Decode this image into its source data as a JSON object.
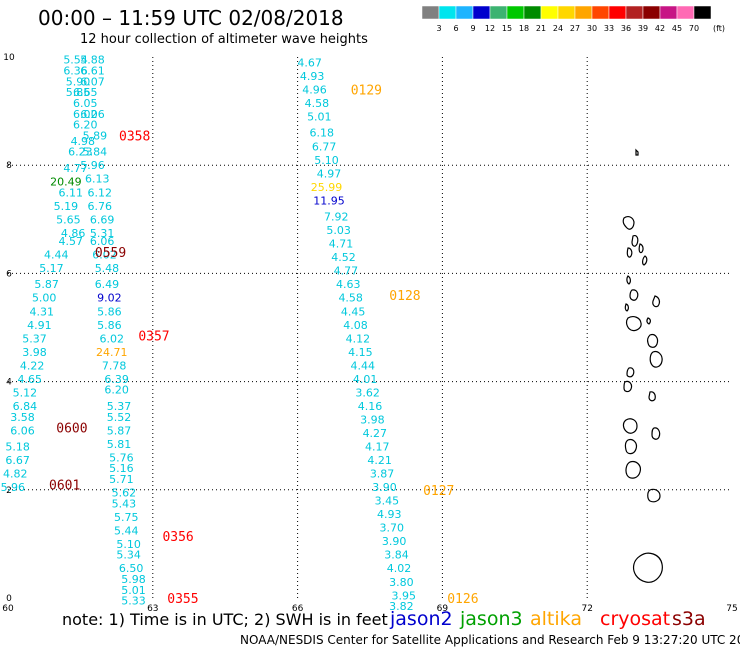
{
  "title": "00:00 – 11:59 UTC 02/08/2018",
  "subtitle": "12 hour collection of altimeter wave heights",
  "note": "note: 1) Time is in UTC; 2) SWH is in feet",
  "credit": "NOAA/NESDIS Center for Satellite Applications and Research   Feb  9 13:27:20 UTC 2018",
  "colorbar": {
    "unit_label": "(ft)",
    "ticks": [
      "3",
      "6",
      "9",
      "12",
      "15",
      "18",
      "21",
      "24",
      "27",
      "30",
      "33",
      "36",
      "39",
      "42",
      "45",
      "70"
    ],
    "colors": [
      "#808080",
      "#00e5ee",
      "#1eb4ff",
      "#0000cd",
      "#3cb371",
      "#00c800",
      "#008b00",
      "#ffff00",
      "#ffd700",
      "#ffa500",
      "#ff4500",
      "#ff0000",
      "#b22222",
      "#8b0000",
      "#c71585",
      "#ff69b4",
      "#000000"
    ]
  },
  "satellites": [
    {
      "name": "jason2",
      "color": "#0000cd"
    },
    {
      "name": "jason3",
      "color": "#00a000"
    },
    {
      "name": "altika",
      "color": "#ffa500"
    },
    {
      "name": "cryosat",
      "color": "#ff0000"
    },
    {
      "name": "s3a",
      "color": "#8b0000"
    }
  ],
  "map": {
    "lon_range": [
      60,
      75
    ],
    "lat_range": [
      0,
      10
    ],
    "x_ticks": [
      60,
      63,
      66,
      69,
      72,
      75
    ],
    "y_ticks": [
      0,
      2,
      4,
      6,
      8,
      10
    ],
    "grid": "dotted"
  },
  "passes": [
    {
      "label": "0129",
      "sat": "altika",
      "lon": 67.1,
      "lat": 9.4
    },
    {
      "label": "0128",
      "sat": "altika",
      "lon": 67.9,
      "lat": 5.6
    },
    {
      "label": "0127",
      "sat": "altika",
      "lon": 68.6,
      "lat": 2.0
    },
    {
      "label": "0126",
      "sat": "altika",
      "lon": 69.1,
      "lat": 0.0
    },
    {
      "label": "0358",
      "sat": "cryosat",
      "lon": 62.3,
      "lat": 8.55
    },
    {
      "label": "0357",
      "sat": "cryosat",
      "lon": 62.7,
      "lat": 4.85
    },
    {
      "label": "0356",
      "sat": "cryosat",
      "lon": 63.2,
      "lat": 1.15
    },
    {
      "label": "0355",
      "sat": "cryosat",
      "lon": 63.3,
      "lat": 0.0
    },
    {
      "label": "0559",
      "sat": "s3a",
      "lon": 61.8,
      "lat": 6.4
    },
    {
      "label": "0600",
      "sat": "s3a",
      "lon": 61.0,
      "lat": 3.15
    },
    {
      "label": "0601",
      "sat": "s3a",
      "lon": 60.85,
      "lat": 2.1
    }
  ],
  "observations": [
    {
      "v": "5.54",
      "lon": 61.4,
      "lat": 9.95,
      "c": "#00c8dc"
    },
    {
      "v": "5.88",
      "lon": 61.75,
      "lat": 9.95,
      "c": "#00c8dc"
    },
    {
      "v": "6.36",
      "lon": 61.4,
      "lat": 9.75,
      "c": "#00c8dc"
    },
    {
      "v": "6.61",
      "lon": 61.75,
      "lat": 9.75,
      "c": "#00c8dc"
    },
    {
      "v": "5.90",
      "lon": 61.45,
      "lat": 9.55,
      "c": "#00c8dc"
    },
    {
      "v": "6.07",
      "lon": 61.75,
      "lat": 9.55,
      "c": "#00c8dc"
    },
    {
      "v": "5.85",
      "lon": 61.45,
      "lat": 9.35,
      "c": "#00c8dc"
    },
    {
      "v": "6.65",
      "lon": 61.6,
      "lat": 9.35,
      "c": "#00c8dc"
    },
    {
      "v": "6.05",
      "lon": 61.6,
      "lat": 9.15,
      "c": "#00c8dc"
    },
    {
      "v": "6.02",
      "lon": 61.6,
      "lat": 8.95,
      "c": "#00c8dc"
    },
    {
      "v": "6.06",
      "lon": 61.75,
      "lat": 8.95,
      "c": "#00c8dc"
    },
    {
      "v": "6.20",
      "lon": 61.6,
      "lat": 8.75,
      "c": "#00c8dc"
    },
    {
      "v": "4.98",
      "lon": 61.55,
      "lat": 8.45,
      "c": "#00c8dc"
    },
    {
      "v": "5.89",
      "lon": 61.8,
      "lat": 8.55,
      "c": "#00c8dc"
    },
    {
      "v": "6.23",
      "lon": 61.5,
      "lat": 8.25,
      "c": "#00c8dc"
    },
    {
      "v": "5.84",
      "lon": 61.8,
      "lat": 8.25,
      "c": "#00c8dc"
    },
    {
      "v": "4.77",
      "lon": 61.4,
      "lat": 7.95,
      "c": "#00c8dc"
    },
    {
      "v": "5.96",
      "lon": 61.75,
      "lat": 8.0,
      "c": "#00c8dc"
    },
    {
      "v": "20.49",
      "lon": 61.2,
      "lat": 7.7,
      "c": "#008b00"
    },
    {
      "v": "6.13",
      "lon": 61.85,
      "lat": 7.75,
      "c": "#00c8dc"
    },
    {
      "v": "6.11",
      "lon": 61.3,
      "lat": 7.5,
      "c": "#00c8dc"
    },
    {
      "v": "6.12",
      "lon": 61.9,
      "lat": 7.5,
      "c": "#00c8dc"
    },
    {
      "v": "5.19",
      "lon": 61.2,
      "lat": 7.25,
      "c": "#00c8dc"
    },
    {
      "v": "6.76",
      "lon": 61.9,
      "lat": 7.25,
      "c": "#00c8dc"
    },
    {
      "v": "5.65",
      "lon": 61.25,
      "lat": 7.0,
      "c": "#00c8dc"
    },
    {
      "v": "6.69",
      "lon": 61.95,
      "lat": 7.0,
      "c": "#00c8dc"
    },
    {
      "v": "4.86",
      "lon": 61.35,
      "lat": 6.75,
      "c": "#00c8dc"
    },
    {
      "v": "5.31",
      "lon": 61.95,
      "lat": 6.75,
      "c": "#00c8dc"
    },
    {
      "v": "4.57",
      "lon": 61.3,
      "lat": 6.6,
      "c": "#00c8dc"
    },
    {
      "v": "6.06",
      "lon": 61.95,
      "lat": 6.6,
      "c": "#00c8dc"
    },
    {
      "v": "4.44",
      "lon": 61.0,
      "lat": 6.35,
      "c": "#00c8dc"
    },
    {
      "v": "6.02",
      "lon": 62.0,
      "lat": 6.35,
      "c": "#00c8dc"
    },
    {
      "v": "5.17",
      "lon": 60.9,
      "lat": 6.1,
      "c": "#00c8dc"
    },
    {
      "v": "5.48",
      "lon": 62.05,
      "lat": 6.1,
      "c": "#00c8dc"
    },
    {
      "v": "5.87",
      "lon": 60.8,
      "lat": 5.8,
      "c": "#00c8dc"
    },
    {
      "v": "6.49",
      "lon": 62.05,
      "lat": 5.8,
      "c": "#00c8dc"
    },
    {
      "v": "5.00",
      "lon": 60.75,
      "lat": 5.55,
      "c": "#00c8dc"
    },
    {
      "v": "9.02",
      "lon": 62.1,
      "lat": 5.55,
      "c": "#0000cd"
    },
    {
      "v": "4.31",
      "lon": 60.7,
      "lat": 5.3,
      "c": "#00c8dc"
    },
    {
      "v": "5.86",
      "lon": 62.1,
      "lat": 5.3,
      "c": "#00c8dc"
    },
    {
      "v": "4.91",
      "lon": 60.65,
      "lat": 5.05,
      "c": "#00c8dc"
    },
    {
      "v": "5.86",
      "lon": 62.1,
      "lat": 5.05,
      "c": "#00c8dc"
    },
    {
      "v": "5.37",
      "lon": 60.55,
      "lat": 4.8,
      "c": "#00c8dc"
    },
    {
      "v": "6.02",
      "lon": 62.15,
      "lat": 4.8,
      "c": "#00c8dc"
    },
    {
      "v": "3.98",
      "lon": 60.55,
      "lat": 4.55,
      "c": "#00c8dc"
    },
    {
      "v": "24.71",
      "lon": 62.15,
      "lat": 4.55,
      "c": "#ffa500"
    },
    {
      "v": "4.22",
      "lon": 60.5,
      "lat": 4.3,
      "c": "#00c8dc"
    },
    {
      "v": "7.78",
      "lon": 62.2,
      "lat": 4.3,
      "c": "#00c8dc"
    },
    {
      "v": "4.65",
      "lon": 60.45,
      "lat": 4.05,
      "c": "#00c8dc"
    },
    {
      "v": "6.39",
      "lon": 62.25,
      "lat": 4.05,
      "c": "#00c8dc"
    },
    {
      "v": "5.12",
      "lon": 60.35,
      "lat": 3.8,
      "c": "#00c8dc"
    },
    {
      "v": "6.20",
      "lon": 62.25,
      "lat": 3.85,
      "c": "#00c8dc"
    },
    {
      "v": "6.84",
      "lon": 60.35,
      "lat": 3.55,
      "c": "#00c8dc"
    },
    {
      "v": "5.37",
      "lon": 62.3,
      "lat": 3.55,
      "c": "#00c8dc"
    },
    {
      "v": "3.58",
      "lon": 60.3,
      "lat": 3.35,
      "c": "#00c8dc"
    },
    {
      "v": "5.52",
      "lon": 62.3,
      "lat": 3.35,
      "c": "#00c8dc"
    },
    {
      "v": "6.06",
      "lon": 60.3,
      "lat": 3.1,
      "c": "#00c8dc"
    },
    {
      "v": "5.87",
      "lon": 62.3,
      "lat": 3.1,
      "c": "#00c8dc"
    },
    {
      "v": "5.81",
      "lon": 62.3,
      "lat": 2.85,
      "c": "#00c8dc"
    },
    {
      "v": "5.18",
      "lon": 60.2,
      "lat": 2.8,
      "c": "#00c8dc"
    },
    {
      "v": "5.76",
      "lon": 62.35,
      "lat": 2.6,
      "c": "#00c8dc"
    },
    {
      "v": "6.67",
      "lon": 60.2,
      "lat": 2.55,
      "c": "#00c8dc"
    },
    {
      "v": "5.16",
      "lon": 62.35,
      "lat": 2.4,
      "c": "#00c8dc"
    },
    {
      "v": "4.82",
      "lon": 60.15,
      "lat": 2.3,
      "c": "#00c8dc"
    },
    {
      "v": "5.71",
      "lon": 62.35,
      "lat": 2.2,
      "c": "#00c8dc"
    },
    {
      "v": "5.96",
      "lon": 60.1,
      "lat": 2.05,
      "c": "#00c8dc"
    },
    {
      "v": "5.62",
      "lon": 62.4,
      "lat": 1.95,
      "c": "#00c8dc"
    },
    {
      "v": "5.43",
      "lon": 62.4,
      "lat": 1.75,
      "c": "#00c8dc"
    },
    {
      "v": "5.75",
      "lon": 62.45,
      "lat": 1.5,
      "c": "#00c8dc"
    },
    {
      "v": "5.44",
      "lon": 62.45,
      "lat": 1.25,
      "c": "#00c8dc"
    },
    {
      "v": "5.10",
      "lon": 62.5,
      "lat": 1.0,
      "c": "#00c8dc"
    },
    {
      "v": "5.34",
      "lon": 62.5,
      "lat": 0.8,
      "c": "#00c8dc"
    },
    {
      "v": "6.50",
      "lon": 62.55,
      "lat": 0.55,
      "c": "#00c8dc"
    },
    {
      "v": "5.98",
      "lon": 62.6,
      "lat": 0.35,
      "c": "#00c8dc"
    },
    {
      "v": "5.01",
      "lon": 62.6,
      "lat": 0.15,
      "c": "#00c8dc"
    },
    {
      "v": "5.33",
      "lon": 62.6,
      "lat": -0.05,
      "c": "#00c8dc"
    },
    {
      "v": "4.67",
      "lon": 66.25,
      "lat": 9.9,
      "c": "#00c8dc"
    },
    {
      "v": "4.93",
      "lon": 66.3,
      "lat": 9.65,
      "c": "#00c8dc"
    },
    {
      "v": "4.96",
      "lon": 66.35,
      "lat": 9.4,
      "c": "#00c8dc"
    },
    {
      "v": "4.58",
      "lon": 66.4,
      "lat": 9.15,
      "c": "#00c8dc"
    },
    {
      "v": "5.01",
      "lon": 66.45,
      "lat": 8.9,
      "c": "#00c8dc"
    },
    {
      "v": "6.18",
      "lon": 66.5,
      "lat": 8.6,
      "c": "#00c8dc"
    },
    {
      "v": "6.77",
      "lon": 66.55,
      "lat": 8.35,
      "c": "#00c8dc"
    },
    {
      "v": "5.10",
      "lon": 66.6,
      "lat": 8.1,
      "c": "#00c8dc"
    },
    {
      "v": "4.97",
      "lon": 66.65,
      "lat": 7.85,
      "c": "#00c8dc"
    },
    {
      "v": "25.99",
      "lon": 66.6,
      "lat": 7.6,
      "c": "#ffd700"
    },
    {
      "v": "11.95",
      "lon": 66.65,
      "lat": 7.35,
      "c": "#0000cd"
    },
    {
      "v": "7.92",
      "lon": 66.8,
      "lat": 7.05,
      "c": "#00c8dc"
    },
    {
      "v": "5.03",
      "lon": 66.85,
      "lat": 6.8,
      "c": "#00c8dc"
    },
    {
      "v": "4.71",
      "lon": 66.9,
      "lat": 6.55,
      "c": "#00c8dc"
    },
    {
      "v": "4.52",
      "lon": 66.95,
      "lat": 6.3,
      "c": "#00c8dc"
    },
    {
      "v": "4.77",
      "lon": 67.0,
      "lat": 6.05,
      "c": "#00c8dc"
    },
    {
      "v": "4.63",
      "lon": 67.05,
      "lat": 5.8,
      "c": "#00c8dc"
    },
    {
      "v": "4.58",
      "lon": 67.1,
      "lat": 5.55,
      "c": "#00c8dc"
    },
    {
      "v": "4.45",
      "lon": 67.15,
      "lat": 5.3,
      "c": "#00c8dc"
    },
    {
      "v": "4.08",
      "lon": 67.2,
      "lat": 5.05,
      "c": "#00c8dc"
    },
    {
      "v": "4.12",
      "lon": 67.25,
      "lat": 4.8,
      "c": "#00c8dc"
    },
    {
      "v": "4.15",
      "lon": 67.3,
      "lat": 4.55,
      "c": "#00c8dc"
    },
    {
      "v": "4.44",
      "lon": 67.35,
      "lat": 4.3,
      "c": "#00c8dc"
    },
    {
      "v": "4.01",
      "lon": 67.4,
      "lat": 4.05,
      "c": "#00c8dc"
    },
    {
      "v": "3.62",
      "lon": 67.45,
      "lat": 3.8,
      "c": "#00c8dc"
    },
    {
      "v": "4.16",
      "lon": 67.5,
      "lat": 3.55,
      "c": "#00c8dc"
    },
    {
      "v": "3.98",
      "lon": 67.55,
      "lat": 3.3,
      "c": "#00c8dc"
    },
    {
      "v": "4.27",
      "lon": 67.6,
      "lat": 3.05,
      "c": "#00c8dc"
    },
    {
      "v": "4.17",
      "lon": 67.65,
      "lat": 2.8,
      "c": "#00c8dc"
    },
    {
      "v": "4.21",
      "lon": 67.7,
      "lat": 2.55,
      "c": "#00c8dc"
    },
    {
      "v": "3.87",
      "lon": 67.75,
      "lat": 2.3,
      "c": "#00c8dc"
    },
    {
      "v": "3.90",
      "lon": 67.8,
      "lat": 2.05,
      "c": "#00c8dc"
    },
    {
      "v": "3.45",
      "lon": 67.85,
      "lat": 1.8,
      "c": "#00c8dc"
    },
    {
      "v": "4.93",
      "lon": 67.9,
      "lat": 1.55,
      "c": "#00c8dc"
    },
    {
      "v": "3.70",
      "lon": 67.95,
      "lat": 1.3,
      "c": "#00c8dc"
    },
    {
      "v": "3.90",
      "lon": 68.0,
      "lat": 1.05,
      "c": "#00c8dc"
    },
    {
      "v": "3.84",
      "lon": 68.05,
      "lat": 0.8,
      "c": "#00c8dc"
    },
    {
      "v": "4.02",
      "lon": 68.1,
      "lat": 0.55,
      "c": "#00c8dc"
    },
    {
      "v": "3.80",
      "lon": 68.15,
      "lat": 0.3,
      "c": "#00c8dc"
    },
    {
      "v": "3.95",
      "lon": 68.2,
      "lat": 0.05,
      "c": "#00c8dc"
    },
    {
      "v": "3.82",
      "lon": 68.15,
      "lat": -0.15,
      "c": "#00c8dc"
    }
  ]
}
